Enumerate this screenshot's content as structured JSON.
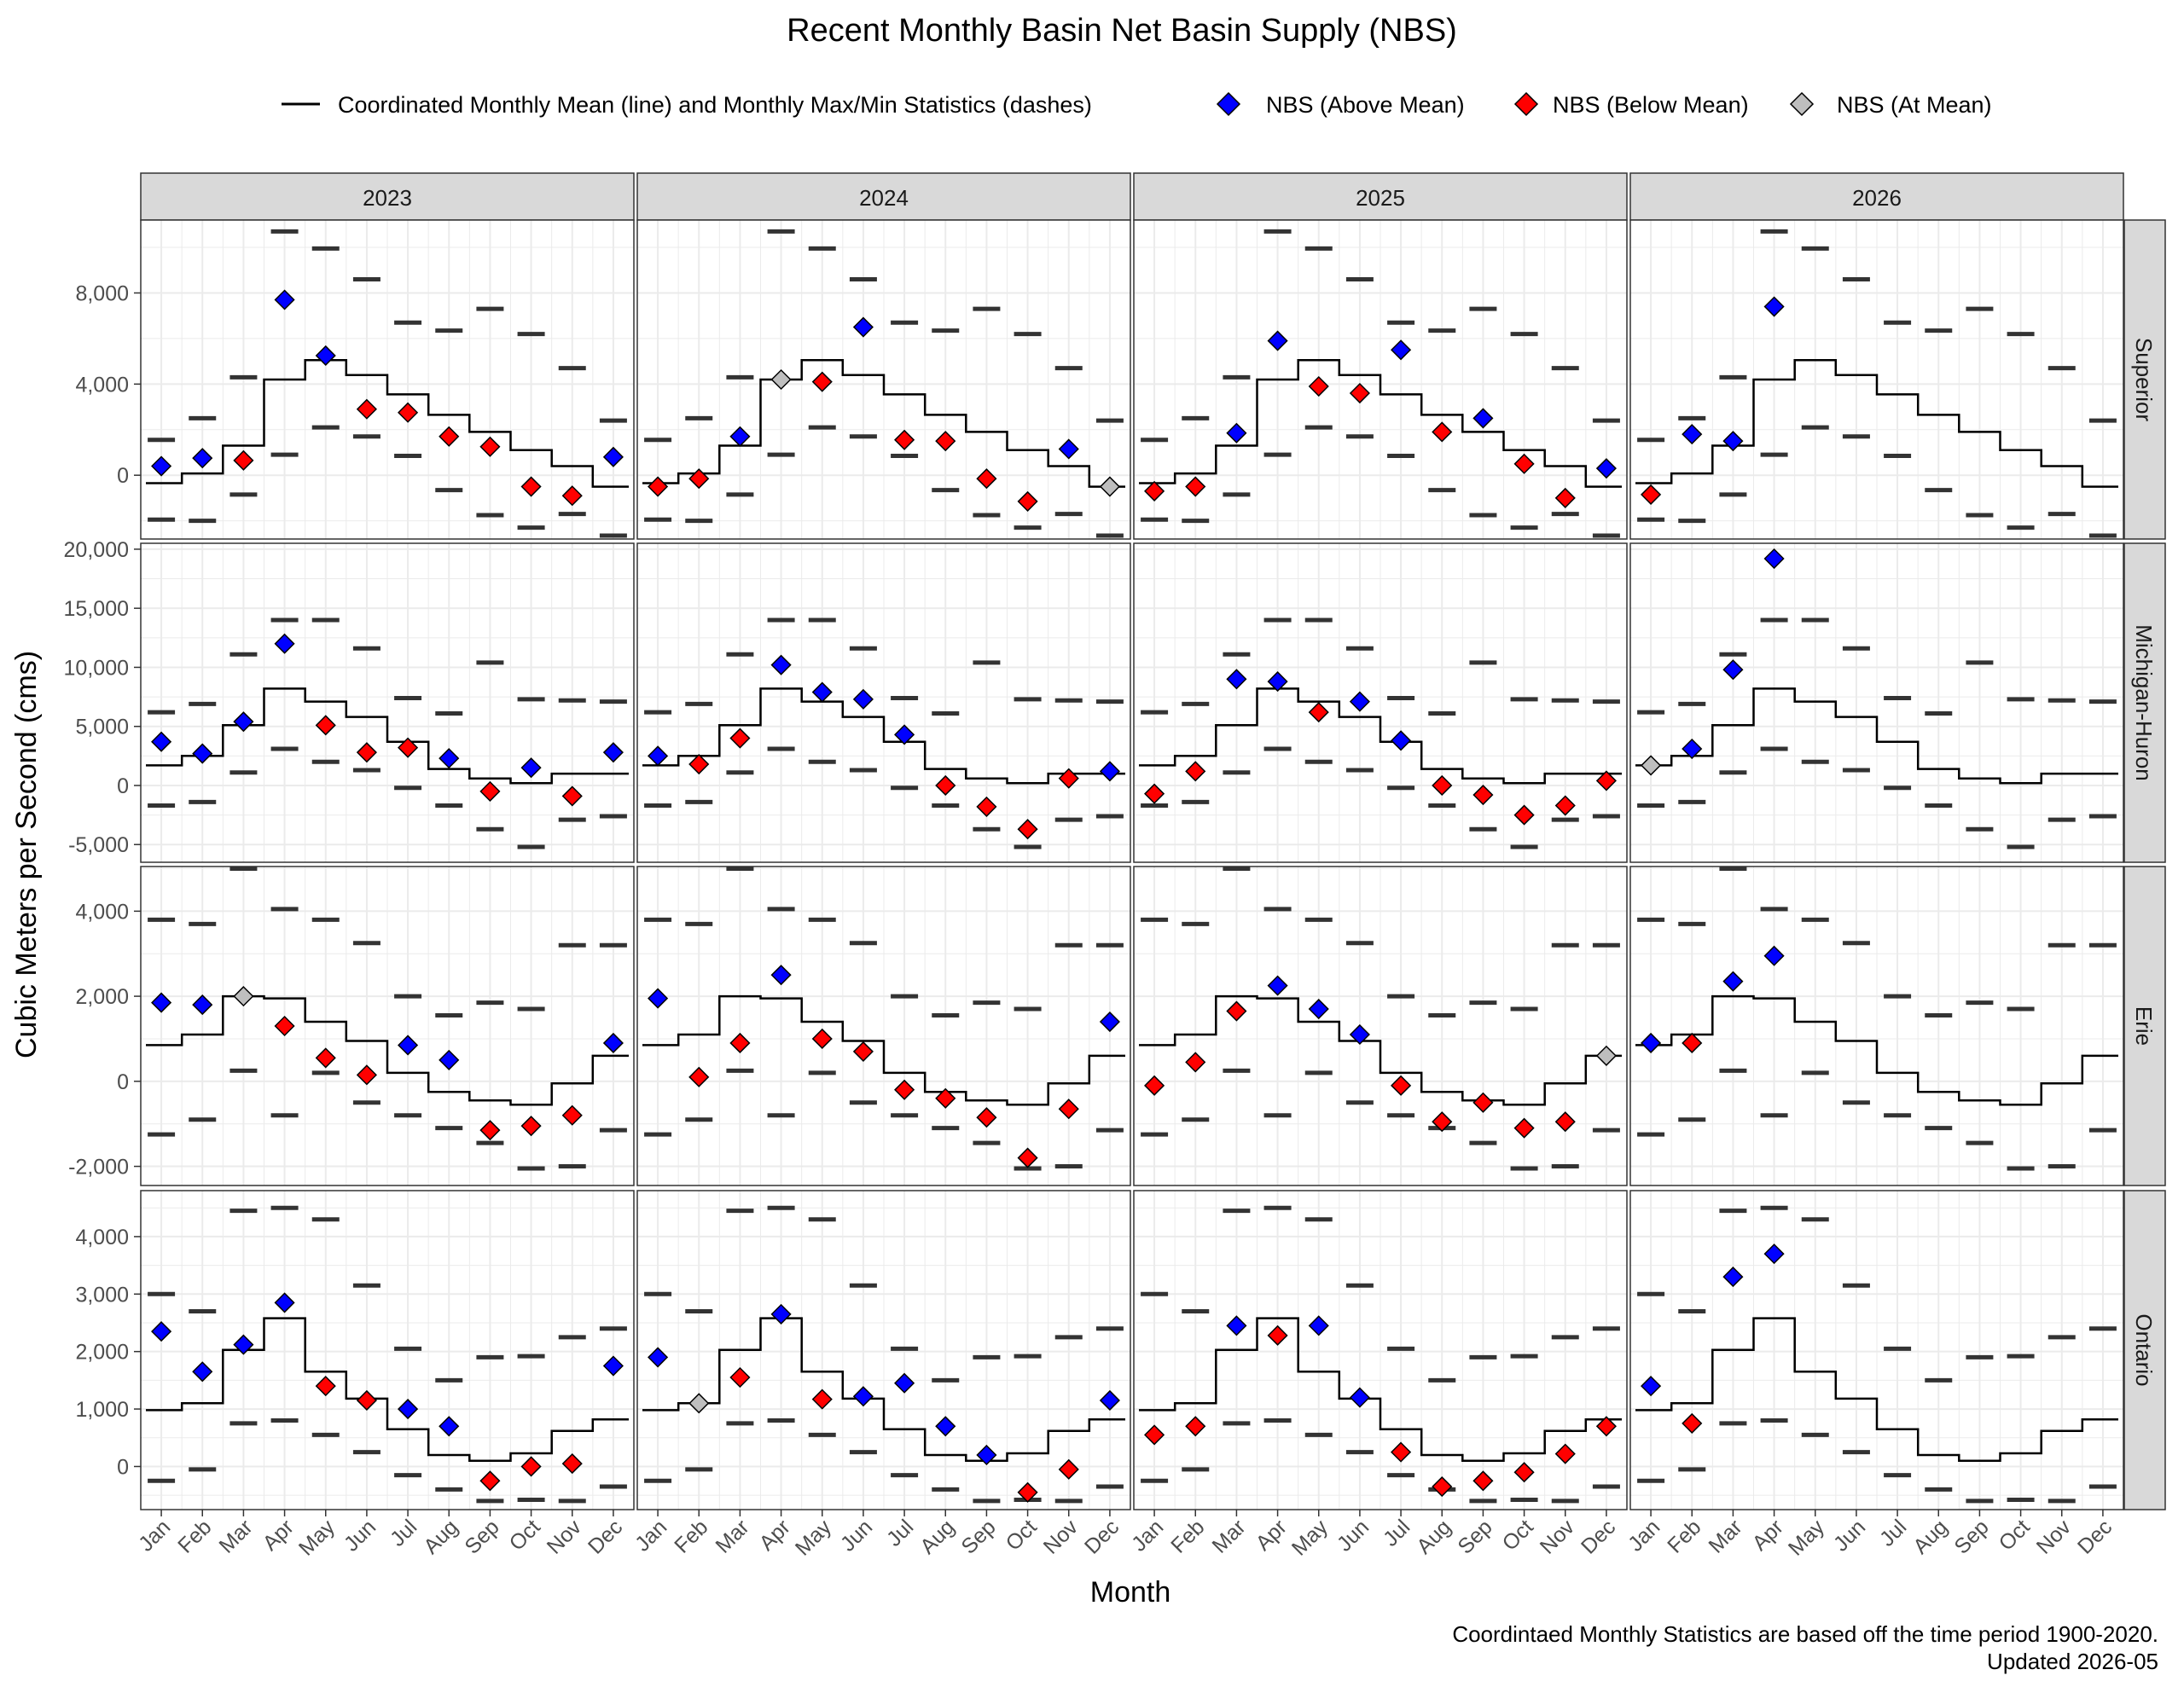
{
  "chart_data": {
    "type": "scatter",
    "title": "Recent Monthly Basin Net Basin Supply (NBS)",
    "xlabel": "Month",
    "ylabel": "Cubic Meters per Second (cms)",
    "caption_line1": "Coordintaed Monthly Statistics are based off the time period 1900-2020.",
    "caption_line2": "Updated 2026-05",
    "legend": {
      "placement": "top",
      "line_label": "Coordinated Monthly Mean (line) and Monthly Max/Min Statistics (dashes)",
      "above_label": "NBS (Above Mean)",
      "below_label": "NBS (Below Mean)",
      "at_label": "NBS (At Mean)"
    },
    "colors": {
      "above": "#0000ff",
      "below": "#ff0000",
      "at": "#bebebe",
      "mean": "#000000",
      "dash": "#333333",
      "strip": "#d9d9d9",
      "grid": "#ebebeb"
    },
    "grid": true,
    "months": [
      "Jan",
      "Feb",
      "Mar",
      "Apr",
      "May",
      "Jun",
      "Jul",
      "Aug",
      "Sep",
      "Oct",
      "Nov",
      "Dec"
    ],
    "years": [
      "2023",
      "2024",
      "2025",
      "2026"
    ],
    "basins": [
      {
        "name": "Superior",
        "ylim": [
          -2800,
          11200
        ],
        "ticks": [
          0,
          4000,
          8000
        ],
        "tick_labels": [
          "0",
          "4,000",
          "8,000"
        ],
        "mean": [
          -350,
          80,
          1300,
          4200,
          5050,
          4400,
          3550,
          2650,
          1900,
          1100,
          400,
          -500
        ],
        "max": [
          1550,
          2500,
          4300,
          10700,
          9950,
          8600,
          6700,
          6350,
          7300,
          6200,
          4700,
          2400
        ],
        "min": [
          -1950,
          -2000,
          -850,
          900,
          2100,
          1700,
          850,
          -650,
          -1750,
          -2300,
          -1700,
          -2650
        ],
        "nbs": {
          "2023": [
            400,
            750,
            650,
            7700,
            5250,
            2900,
            2750,
            1700,
            1250,
            -500,
            -900,
            800
          ],
          "2024": [
            -500,
            -150,
            1700,
            4200,
            4100,
            6500,
            1550,
            1500,
            -150,
            -1150,
            1150,
            -500
          ],
          "2025": [
            -700,
            -500,
            1850,
            5900,
            3900,
            3600,
            5500,
            1900,
            2500,
            500,
            -1000,
            300
          ],
          "2026": [
            -850,
            1800,
            1500,
            7400,
            null,
            null,
            null,
            null,
            null,
            null,
            null,
            null
          ]
        }
      },
      {
        "name": "Michigan-Huron",
        "ylim": [
          -6500,
          20500
        ],
        "ticks": [
          -5000,
          0,
          5000,
          10000,
          15000,
          20000
        ],
        "tick_labels": [
          "-5,000",
          "0",
          "5,000",
          "10,000",
          "15,000",
          "20,000"
        ],
        "mean": [
          1700,
          2500,
          5100,
          8200,
          7100,
          5800,
          3700,
          1400,
          600,
          200,
          1000,
          1000
        ],
        "max": [
          6200,
          6900,
          11100,
          14000,
          14000,
          11600,
          7400,
          6100,
          10400,
          7300,
          7200,
          7100
        ],
        "min": [
          -1700,
          -1400,
          1100,
          3100,
          2000,
          1300,
          -200,
          -1700,
          -3700,
          -5200,
          -2900,
          -2600
        ],
        "nbs": {
          "2023": [
            3700,
            2700,
            5400,
            12000,
            5100,
            2800,
            3200,
            2300,
            -500,
            1500,
            -900,
            2800
          ],
          "2024": [
            2500,
            1800,
            4000,
            10200,
            7900,
            7300,
            4300,
            0,
            -1800,
            -3700,
            600,
            1200
          ],
          "2025": [
            -700,
            1200,
            9000,
            8800,
            6200,
            7100,
            3800,
            0,
            -800,
            -2500,
            -1700,
            400
          ],
          "2026": [
            1700,
            3100,
            9800,
            19200,
            null,
            null,
            null,
            null,
            null,
            null,
            null,
            null
          ]
        }
      },
      {
        "name": "Erie",
        "ylim": [
          -2450,
          5050
        ],
        "ticks": [
          -2000,
          0,
          2000,
          4000
        ],
        "tick_labels": [
          "-2,000",
          "0",
          "2,000",
          "4,000"
        ],
        "mean": [
          850,
          1100,
          2000,
          1950,
          1400,
          950,
          200,
          -250,
          -450,
          -550,
          -50,
          600
        ],
        "max": [
          3800,
          3700,
          5000,
          4050,
          3800,
          3250,
          2000,
          1550,
          1850,
          1700,
          3200,
          3200
        ],
        "min": [
          -1250,
          -900,
          250,
          -800,
          200,
          -500,
          -800,
          -1100,
          -1450,
          -2050,
          -2000,
          -1150
        ],
        "nbs": {
          "2023": [
            1850,
            1800,
            2000,
            1300,
            550,
            150,
            850,
            500,
            -1150,
            -1050,
            -800,
            900
          ],
          "2024": [
            1950,
            100,
            900,
            2500,
            1000,
            700,
            -200,
            -400,
            -850,
            -1800,
            -650,
            1400
          ],
          "2025": [
            -100,
            450,
            1650,
            2250,
            1700,
            1100,
            -100,
            -950,
            -500,
            -1100,
            -950,
            600
          ],
          "2026": [
            900,
            900,
            2350,
            2950,
            null,
            null,
            null,
            null,
            null,
            null,
            null,
            null
          ]
        }
      },
      {
        "name": "Ontario",
        "ylim": [
          -750,
          4800
        ],
        "ticks": [
          0,
          1000,
          2000,
          3000,
          4000
        ],
        "tick_labels": [
          "0",
          "1,000",
          "2,000",
          "3,000",
          "4,000"
        ],
        "mean": [
          980,
          1100,
          2030,
          2580,
          1650,
          1180,
          650,
          200,
          100,
          230,
          620,
          820
        ],
        "max": [
          3000,
          2700,
          4450,
          4500,
          4300,
          3150,
          2050,
          1500,
          1900,
          1920,
          2250,
          2400
        ],
        "min": [
          -250,
          -50,
          750,
          800,
          550,
          250,
          -150,
          -400,
          -600,
          -580,
          -600,
          -350
        ],
        "nbs": {
          "2023": [
            2350,
            1650,
            2120,
            2850,
            1400,
            1150,
            1000,
            700,
            -250,
            0,
            50,
            1750
          ],
          "2024": [
            1900,
            1100,
            1550,
            2650,
            1170,
            1220,
            1450,
            700,
            200,
            -450,
            -50,
            1150
          ],
          "2025": [
            550,
            700,
            2450,
            2280,
            2450,
            1200,
            250,
            -350,
            -250,
            -100,
            220,
            700
          ],
          "2026": [
            1400,
            750,
            3300,
            3700,
            null,
            null,
            null,
            null,
            null,
            null,
            null,
            null
          ]
        }
      }
    ]
  }
}
